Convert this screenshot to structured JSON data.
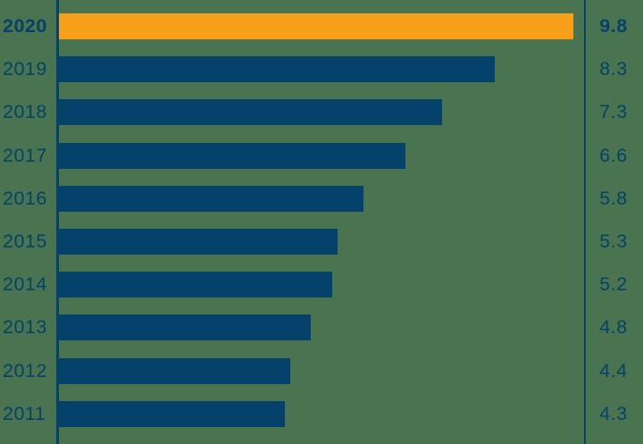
{
  "chart_data": {
    "type": "bar",
    "orientation": "horizontal",
    "title": "",
    "xlabel": "",
    "ylabel": "",
    "categories": [
      "2020",
      "2019",
      "2018",
      "2017",
      "2016",
      "2015",
      "2014",
      "2013",
      "2012",
      "2011"
    ],
    "values": [
      9.8,
      8.3,
      7.3,
      6.6,
      5.8,
      5.3,
      5.2,
      4.8,
      4.4,
      4.3
    ],
    "value_labels": [
      "9.8",
      "8.3",
      "7.3",
      "6.6",
      "5.8",
      "5.3",
      "5.2",
      "4.8",
      "4.4",
      "4.3"
    ],
    "highlighted_category": "2020",
    "xlim": [
      0,
      9.8
    ],
    "grid": false,
    "legend": false,
    "axis_lines": [
      "left-baseline",
      "right-value-separator"
    ]
  },
  "colors": {
    "background": "#4A7350",
    "bar": "#04426B",
    "highlight": "#F9A01B",
    "text": "#04426B"
  }
}
